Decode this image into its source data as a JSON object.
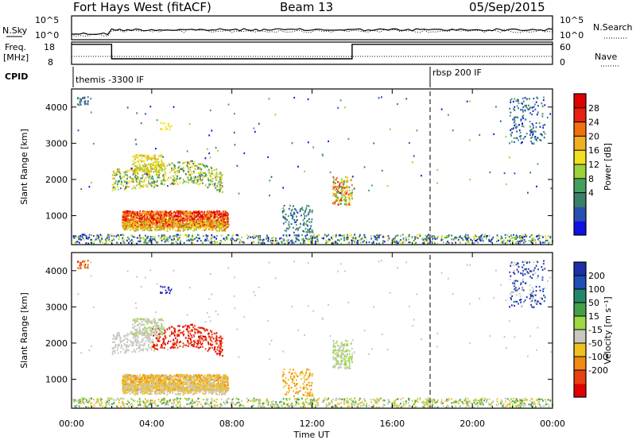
{
  "header": {
    "station": "Fort Hays West (fitACF)",
    "beam": "Beam 13",
    "date": "05/Sep/2015"
  },
  "top_panels": {
    "nsky_label": "N.Sky",
    "nsearch_label": "N.Search",
    "nsky_ticks": [
      "10^5",
      "10^0"
    ],
    "nsearch_ticks": [
      "10^5",
      "10^0"
    ],
    "freq_label": "Freq.",
    "freq_unit": "[MHz]",
    "freq_ticks": [
      "18",
      "8"
    ],
    "nave_label": "Nave",
    "nave_ticks": [
      "60",
      "0"
    ],
    "cpid_label": "CPID",
    "cpid_entries": [
      "themis -3300 IF",
      "rbsp 200 IF"
    ]
  },
  "colors": {
    "power_scale": [
      "#1010e0",
      "#2a4fb0",
      "#3a7f6a",
      "#45a060",
      "#9cd23a",
      "#f0e020",
      "#f0b020",
      "#f07010",
      "#e82010",
      "#e00000"
    ],
    "velocity_scale": [
      "#1e2ea8",
      "#1e4fb4",
      "#25876a",
      "#46a048",
      "#9ed843",
      "#c8c8c0",
      "#f0c020",
      "#f08a10",
      "#e84010",
      "#e00000"
    ]
  },
  "chart_data": [
    {
      "type": "heatmap",
      "name_ref": "power",
      "ylabel": "Slant Range [km]",
      "y_ticks": [
        "1000",
        "2000",
        "3000",
        "4000"
      ],
      "ylim": [
        200,
        4500
      ],
      "xlim": [
        0,
        24
      ],
      "x_ticks": [
        "00:00",
        "04:00",
        "08:00",
        "12:00",
        "16:00",
        "20:00",
        "00:00"
      ],
      "colorbar_label": "Power [dB]",
      "colorbar_ticks": [
        "28",
        "24",
        "20",
        "16",
        "12",
        "8",
        "4"
      ],
      "clim": [
        0,
        30
      ]
    },
    {
      "type": "heatmap",
      "name_ref": "velocity",
      "ylabel": "Slant Range [km]",
      "y_ticks": [
        "1000",
        "2000",
        "3000",
        "4000"
      ],
      "ylim": [
        200,
        4500
      ],
      "xlim": [
        0,
        24
      ],
      "x_ticks": [
        "00:00",
        "04:00",
        "08:00",
        "12:00",
        "16:00",
        "20:00",
        "00:00"
      ],
      "xlabel": "Time UT",
      "colorbar_label": "Velocity [m s⁻¹]",
      "colorbar_ticks": [
        "200",
        "100",
        "50",
        "15",
        "-15",
        "-50",
        "-100",
        "-200"
      ],
      "clim": [
        -250,
        250
      ]
    }
  ]
}
